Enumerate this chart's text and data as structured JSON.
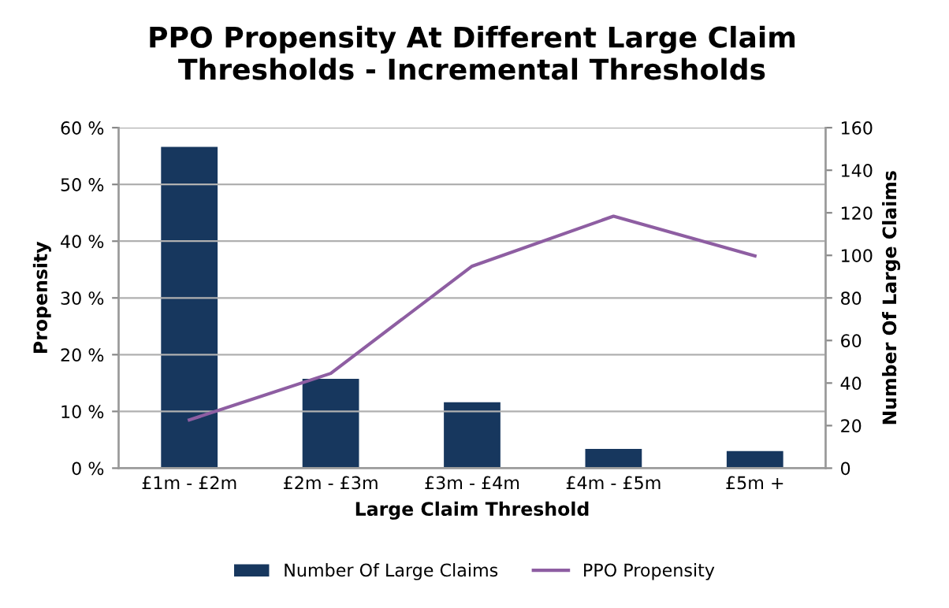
{
  "chart_data": {
    "type": "bar",
    "title": "PPO Propensity At Different Large Claim\nThresholds - Incremental Thresholds",
    "xlabel": "Large Claim Threshold",
    "ylabel": "Propensity",
    "y2label": "Number Of Large Claims",
    "categories": [
      "£1m - £2m",
      "£2m - £3m",
      "£3m - £4m",
      "£4m - £5m",
      "£5m +"
    ],
    "series": [
      {
        "name": "Number Of Large Claims",
        "axis": "y2",
        "color": "#17375e",
        "values": [
          151,
          42,
          31,
          9,
          8
        ]
      },
      {
        "name": "PPO Propensity",
        "type": "line",
        "color": "#8e5ea2",
        "values": [
          8.5,
          16.7,
          35.6,
          44.4,
          37.4
        ]
      }
    ],
    "ylim": [
      0,
      60
    ],
    "yticks": [
      {
        "value": 0,
        "label": "0 %"
      },
      {
        "value": 10,
        "label": "10 %"
      },
      {
        "value": 20,
        "label": "20 %"
      },
      {
        "value": 30,
        "label": "30 %"
      },
      {
        "value": 40,
        "label": "40 %"
      },
      {
        "value": 50,
        "label": "50 %"
      },
      {
        "value": 60,
        "label": "60 %"
      }
    ],
    "y2lim": [
      0,
      160
    ],
    "y2ticks": [
      0,
      20,
      40,
      60,
      80,
      100,
      120,
      140,
      160
    ],
    "grid": "y",
    "legend": "bottom",
    "marker": "none",
    "line_style": "solid"
  }
}
